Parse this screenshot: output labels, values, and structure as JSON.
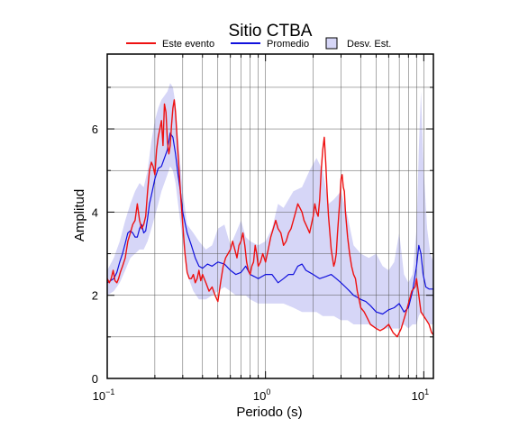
{
  "chart_data": {
    "type": "line",
    "title": "Sitio CTBA",
    "xlabel": "Periodo (s)",
    "ylabel": "Amplitud",
    "xscale": "log",
    "xlim": [
      0.1,
      11.5
    ],
    "ylim": [
      0,
      7.8
    ],
    "grid": true,
    "legend_position": "top",
    "x_tick_labels": [
      {
        "value": 0.1,
        "base": "10",
        "exp": "−1"
      },
      {
        "value": 1,
        "base": "10",
        "exp": "0"
      },
      {
        "value": 10,
        "base": "10",
        "exp": "1"
      }
    ],
    "y_ticks": [
      0,
      2,
      4,
      6
    ],
    "legend": [
      {
        "label": "Este evento",
        "kind": "line",
        "color": "#ee1111"
      },
      {
        "label": "Promedio",
        "kind": "line",
        "color": "#1111dd"
      },
      {
        "label": "Desv. Est.",
        "kind": "box",
        "color": "#d6d6f7"
      }
    ],
    "band": {
      "name": "Desv. Est.",
      "color": "#d6d6f7",
      "x": [
        0.1,
        0.11,
        0.12,
        0.13,
        0.14,
        0.15,
        0.16,
        0.17,
        0.18,
        0.19,
        0.2,
        0.21,
        0.22,
        0.23,
        0.24,
        0.25,
        0.26,
        0.27,
        0.28,
        0.3,
        0.32,
        0.35,
        0.38,
        0.42,
        0.46,
        0.5,
        0.55,
        0.6,
        0.65,
        0.7,
        0.75,
        0.8,
        0.9,
        1.0,
        1.1,
        1.2,
        1.3,
        1.5,
        1.7,
        1.9,
        2.1,
        2.3,
        2.5,
        2.7,
        3.0,
        3.3,
        3.6,
        4.0,
        4.5,
        5.0,
        5.5,
        6.0,
        6.5,
        7.0,
        7.5,
        8.0,
        8.5,
        9.0,
        9.3,
        9.6,
        10.0,
        10.5,
        11.0,
        11.5
      ],
      "upper": [
        2.6,
        2.9,
        3.3,
        3.8,
        4.2,
        4.5,
        4.7,
        4.6,
        5.0,
        5.7,
        6.2,
        6.5,
        6.7,
        6.8,
        6.9,
        7.1,
        7.0,
        6.6,
        5.8,
        4.5,
        3.7,
        3.5,
        3.3,
        3.1,
        3.2,
        3.6,
        3.7,
        3.2,
        3.5,
        3.8,
        3.4,
        3.3,
        3.2,
        3.3,
        3.6,
        4.2,
        4.1,
        4.5,
        4.6,
        5.0,
        5.3,
        5.0,
        4.2,
        4.3,
        4.5,
        3.9,
        3.2,
        3.0,
        2.9,
        3.0,
        2.7,
        2.6,
        2.8,
        3.5,
        2.5,
        2.3,
        2.5,
        3.6,
        5.5,
        6.9,
        5.0,
        3.6,
        3.0,
        2.8
      ],
      "lower": [
        2.0,
        2.1,
        2.3,
        2.6,
        2.9,
        3.0,
        3.1,
        3.1,
        3.3,
        3.6,
        3.9,
        4.2,
        4.5,
        4.7,
        4.9,
        5.1,
        5.0,
        4.7,
        4.2,
        3.3,
        2.5,
        2.1,
        1.9,
        1.9,
        2.0,
        2.1,
        2.2,
        2.1,
        2.0,
        2.0,
        2.0,
        1.9,
        1.8,
        1.8,
        1.8,
        1.8,
        1.8,
        1.7,
        1.6,
        1.6,
        1.6,
        1.5,
        1.5,
        1.5,
        1.4,
        1.4,
        1.3,
        1.3,
        1.3,
        1.2,
        1.2,
        1.2,
        1.2,
        1.2,
        1.3,
        1.2,
        1.3,
        1.3,
        1.5,
        1.6,
        1.5,
        1.4,
        1.3,
        1.3
      ]
    },
    "series": [
      {
        "name": "Promedio",
        "color": "#1111dd",
        "x": [
          0.1,
          0.105,
          0.11,
          0.115,
          0.12,
          0.125,
          0.13,
          0.135,
          0.14,
          0.145,
          0.15,
          0.155,
          0.16,
          0.165,
          0.17,
          0.175,
          0.18,
          0.185,
          0.19,
          0.2,
          0.21,
          0.22,
          0.23,
          0.24,
          0.25,
          0.26,
          0.27,
          0.28,
          0.29,
          0.3,
          0.32,
          0.34,
          0.36,
          0.38,
          0.4,
          0.43,
          0.46,
          0.5,
          0.55,
          0.6,
          0.65,
          0.7,
          0.75,
          0.8,
          0.85,
          0.9,
          1.0,
          1.1,
          1.2,
          1.3,
          1.4,
          1.5,
          1.6,
          1.7,
          1.8,
          1.9,
          2.0,
          2.2,
          2.4,
          2.6,
          2.8,
          3.0,
          3.2,
          3.4,
          3.6,
          3.8,
          4.0,
          4.3,
          4.6,
          5.0,
          5.5,
          6.0,
          6.5,
          7.0,
          7.5,
          8.0,
          8.5,
          9.0,
          9.3,
          9.6,
          9.9,
          10.3,
          10.8,
          11.5
        ],
        "y": [
          2.3,
          2.35,
          2.4,
          2.55,
          2.8,
          3.0,
          3.25,
          3.5,
          3.55,
          3.5,
          3.4,
          3.4,
          3.6,
          3.7,
          3.5,
          3.55,
          3.85,
          4.2,
          4.4,
          4.8,
          5.05,
          5.1,
          5.3,
          5.5,
          5.9,
          5.8,
          5.4,
          4.9,
          4.5,
          4.0,
          3.5,
          3.2,
          2.9,
          2.7,
          2.65,
          2.75,
          2.7,
          2.8,
          2.75,
          2.6,
          2.5,
          2.55,
          2.7,
          2.5,
          2.45,
          2.4,
          2.5,
          2.5,
          2.3,
          2.4,
          2.5,
          2.5,
          2.7,
          2.75,
          2.6,
          2.55,
          2.5,
          2.4,
          2.45,
          2.5,
          2.4,
          2.3,
          2.2,
          2.1,
          2.0,
          1.95,
          1.9,
          1.85,
          1.75,
          1.6,
          1.55,
          1.65,
          1.7,
          1.8,
          1.6,
          1.7,
          2.1,
          2.7,
          3.2,
          3.0,
          2.5,
          2.2,
          2.15,
          2.15
        ]
      },
      {
        "name": "Este evento",
        "color": "#ee1111",
        "x": [
          0.1,
          0.103,
          0.106,
          0.109,
          0.112,
          0.115,
          0.118,
          0.121,
          0.125,
          0.13,
          0.135,
          0.14,
          0.145,
          0.15,
          0.155,
          0.16,
          0.165,
          0.17,
          0.175,
          0.18,
          0.185,
          0.19,
          0.195,
          0.2,
          0.205,
          0.21,
          0.215,
          0.22,
          0.225,
          0.23,
          0.235,
          0.24,
          0.245,
          0.25,
          0.255,
          0.26,
          0.265,
          0.27,
          0.28,
          0.29,
          0.3,
          0.31,
          0.32,
          0.33,
          0.34,
          0.35,
          0.36,
          0.37,
          0.38,
          0.39,
          0.4,
          0.42,
          0.44,
          0.46,
          0.48,
          0.5,
          0.52,
          0.54,
          0.56,
          0.58,
          0.6,
          0.62,
          0.64,
          0.66,
          0.68,
          0.7,
          0.72,
          0.74,
          0.76,
          0.78,
          0.8,
          0.82,
          0.84,
          0.86,
          0.88,
          0.9,
          0.93,
          0.96,
          1.0,
          1.04,
          1.08,
          1.12,
          1.16,
          1.2,
          1.25,
          1.3,
          1.35,
          1.4,
          1.45,
          1.5,
          1.55,
          1.6,
          1.65,
          1.7,
          1.75,
          1.8,
          1.85,
          1.9,
          1.95,
          2.0,
          2.05,
          2.1,
          2.15,
          2.2,
          2.25,
          2.3,
          2.35,
          2.4,
          2.45,
          2.5,
          2.55,
          2.6,
          2.65,
          2.7,
          2.75,
          2.8,
          2.85,
          2.9,
          2.95,
          3.0,
          3.05,
          3.1,
          3.15,
          3.2,
          3.3,
          3.4,
          3.5,
          3.6,
          3.7,
          3.8,
          3.9,
          4.0,
          4.2,
          4.4,
          4.6,
          4.8,
          5.0,
          5.3,
          5.6,
          6.0,
          6.4,
          6.8,
          7.2,
          7.6,
          8.0,
          8.4,
          8.8,
          9.0,
          9.3,
          9.6,
          10.0,
          10.4,
          10.8,
          11.2,
          11.5
        ],
        "y": [
          2.4,
          2.3,
          2.4,
          2.6,
          2.35,
          2.3,
          2.4,
          2.55,
          2.7,
          2.9,
          3.3,
          3.5,
          3.7,
          3.8,
          4.2,
          3.8,
          3.6,
          3.7,
          3.9,
          4.5,
          5.0,
          5.2,
          5.1,
          4.9,
          5.5,
          5.8,
          6.0,
          6.2,
          5.6,
          6.6,
          6.4,
          5.7,
          5.4,
          5.6,
          6.1,
          6.5,
          6.7,
          6.4,
          5.4,
          4.5,
          3.7,
          3.0,
          2.55,
          2.4,
          2.4,
          2.5,
          2.3,
          2.4,
          2.6,
          2.35,
          2.5,
          2.3,
          2.1,
          2.2,
          2.0,
          1.85,
          2.3,
          2.7,
          2.9,
          3.0,
          3.1,
          3.3,
          3.1,
          2.9,
          3.2,
          3.3,
          3.5,
          3.2,
          2.8,
          2.6,
          2.5,
          2.7,
          2.8,
          3.2,
          3.0,
          2.7,
          2.8,
          3.0,
          2.8,
          3.1,
          3.4,
          3.6,
          3.8,
          3.6,
          3.5,
          3.2,
          3.3,
          3.5,
          3.6,
          3.8,
          4.0,
          4.2,
          4.1,
          4.0,
          3.8,
          3.7,
          3.6,
          3.5,
          3.7,
          3.9,
          4.2,
          4.0,
          3.9,
          4.3,
          5.0,
          5.5,
          5.8,
          5.2,
          4.5,
          3.9,
          3.5,
          3.1,
          2.9,
          2.7,
          2.8,
          3.0,
          3.5,
          3.9,
          4.3,
          4.8,
          4.9,
          4.6,
          4.5,
          4.0,
          3.4,
          3.0,
          2.7,
          2.5,
          2.4,
          2.1,
          1.9,
          1.7,
          1.6,
          1.45,
          1.3,
          1.25,
          1.2,
          1.15,
          1.2,
          1.3,
          1.1,
          1.0,
          1.2,
          1.5,
          1.8,
          2.1,
          2.2,
          2.4,
          2.0,
          1.6,
          1.5,
          1.4,
          1.3,
          1.1,
          1.05
        ]
      }
    ]
  }
}
